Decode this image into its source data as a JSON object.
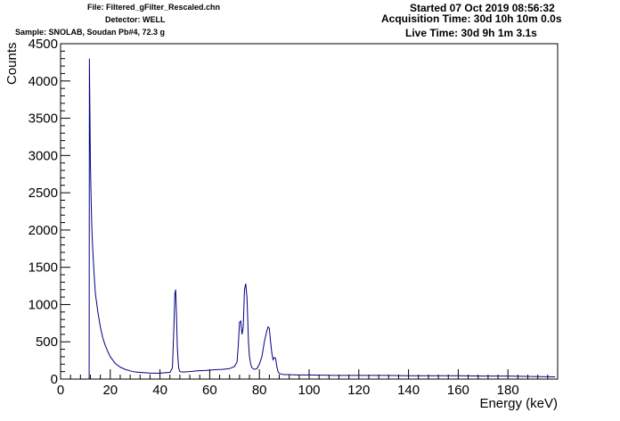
{
  "header": {
    "file": "File: Filtered_gFilter_Rescaled.chn",
    "detector": "Detector: WELL",
    "sample": "Sample: SNOLAB, Soudan Pb#4, 72.3 g",
    "started": "Started 07 Oct 2019 08:56:32",
    "acquisition": "Acquisition Time: 30d 10h 10m 0.0s",
    "live": "Live Time: 30d 9h 1m 3.1s"
  },
  "chart_data": {
    "type": "line",
    "xlabel": "Energy (keV)",
    "ylabel": "Counts",
    "xlim": [
      0,
      200
    ],
    "ylim": [
      0,
      4500
    ],
    "x_ticks": [
      0,
      20,
      40,
      60,
      80,
      100,
      120,
      140,
      160,
      180
    ],
    "x_tick_labels": [
      "0",
      "20",
      "40",
      "60",
      "80",
      "100",
      "120",
      "140",
      "160",
      "180"
    ],
    "y_ticks": [
      0,
      500,
      1000,
      1500,
      2000,
      2500,
      3000,
      3500,
      4000,
      4500
    ],
    "y_tick_labels": [
      "0",
      "500",
      "1000",
      "1500",
      "2000",
      "2500",
      "3000",
      "3500",
      "4000",
      "4500"
    ],
    "grid": false,
    "line_color": "#000080",
    "series": [
      {
        "x": [
          0,
          11.5,
          11.6,
          11.8,
          12.0,
          12.3,
          12.6,
          13.0,
          13.5,
          14,
          15,
          16,
          17,
          18,
          19,
          20,
          22,
          24,
          26,
          28,
          30,
          32,
          34,
          36,
          38,
          40,
          42,
          44,
          45,
          45.5,
          46,
          46.3,
          46.6,
          47,
          47.5,
          48,
          49,
          50,
          52,
          55,
          58,
          60,
          62,
          65,
          68,
          70,
          71,
          71.5,
          72,
          72.5,
          73,
          73.5,
          74,
          74.5,
          75,
          75.3,
          75.6,
          76,
          76.5,
          77,
          78,
          79,
          80,
          81,
          82,
          83,
          83.5,
          84,
          84.5,
          85,
          85.5,
          86,
          86.5,
          87,
          87.5,
          88,
          89,
          90,
          92,
          95,
          100,
          110,
          120,
          130,
          140,
          150,
          160,
          170,
          180,
          190,
          199
        ],
        "y": [
          0,
          0,
          4300,
          3600,
          2900,
          2400,
          2000,
          1700,
          1400,
          1150,
          900,
          700,
          550,
          450,
          370,
          300,
          210,
          160,
          130,
          110,
          95,
          90,
          85,
          80,
          80,
          80,
          85,
          90,
          150,
          600,
          1150,
          1200,
          900,
          400,
          150,
          100,
          95,
          95,
          100,
          110,
          115,
          120,
          125,
          130,
          140,
          170,
          230,
          450,
          760,
          780,
          600,
          700,
          1200,
          1280,
          1100,
          800,
          500,
          300,
          200,
          150,
          130,
          140,
          200,
          300,
          500,
          650,
          700,
          680,
          500,
          350,
          260,
          290,
          280,
          170,
          100,
          75,
          65,
          60,
          60,
          55,
          55,
          50,
          50,
          50,
          45,
          45,
          45,
          40,
          40,
          35,
          30
        ]
      }
    ]
  }
}
